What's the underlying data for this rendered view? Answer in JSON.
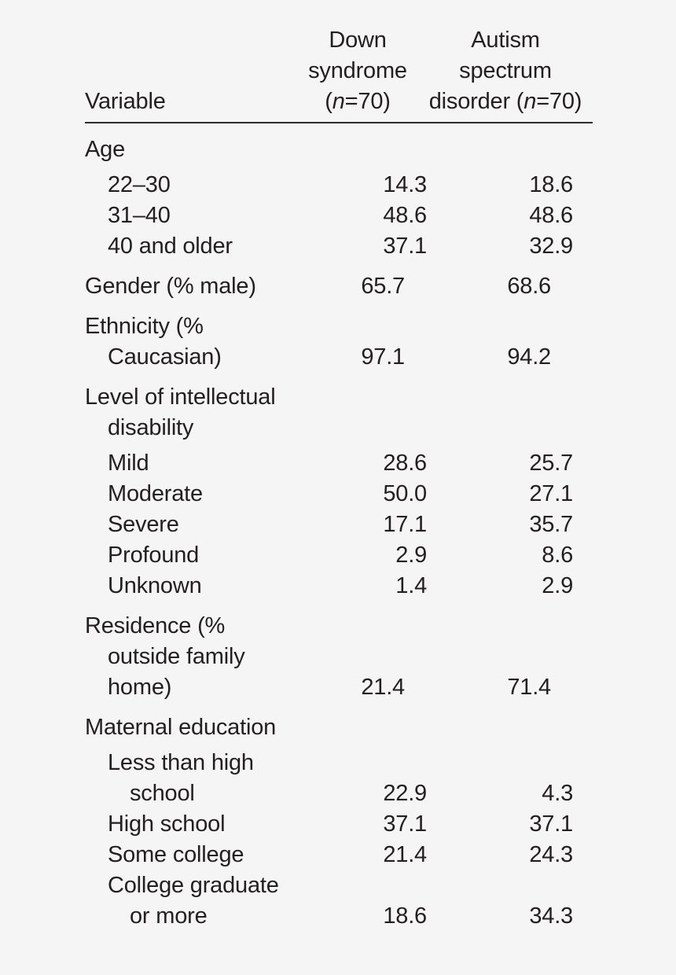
{
  "page": {
    "background_color": "#f5f5f6",
    "text_color": "#231f20",
    "rule_color": "#2e2c2d"
  },
  "table": {
    "header": {
      "variable_label": "Variable",
      "ds": {
        "line1": "Down",
        "line2": "syndrome",
        "n_pre": "(",
        "n": "n",
        "n_post": "=70)"
      },
      "asd": {
        "line1": "Autism",
        "line2": "spectrum",
        "n_pre": "disorder (",
        "n": "n",
        "n_post": "=70)"
      }
    },
    "rows": [
      {
        "label": "Age",
        "level": 0,
        "ds": "",
        "asd": "",
        "gap": "section"
      },
      {
        "label": "22–30",
        "level": 1,
        "ds": "14.3",
        "asd": "18.6",
        "gap": "sub"
      },
      {
        "label": "31–40",
        "level": 1,
        "ds": "48.6",
        "asd": "48.6",
        "gap": "none"
      },
      {
        "label": "40 and older",
        "level": 1,
        "ds": "37.1",
        "asd": "32.9",
        "gap": "none"
      },
      {
        "label": "Gender (% male)",
        "level": 0,
        "ds": "65.7",
        "asad_note": "",
        "asd": "68.6",
        "gap": "section"
      },
      {
        "label": "Ethnicity (%\nCaucasian)",
        "level": 0,
        "ds": "97.1",
        "asd": "94.2",
        "gap": "section"
      },
      {
        "label": "Level of intellectual\ndisability",
        "level": 0,
        "ds": "",
        "asd": "",
        "gap": "section"
      },
      {
        "label": "Mild",
        "level": 1,
        "ds": "28.6",
        "asd": "25.7",
        "gap": "sub"
      },
      {
        "label": "Moderate",
        "level": 1,
        "ds": "50.0",
        "asd": "27.1",
        "gap": "none"
      },
      {
        "label": "Severe",
        "level": 1,
        "ds": "17.1",
        "asd": "35.7",
        "gap": "none"
      },
      {
        "label": "Profound",
        "level": 1,
        "ds": "2.9",
        "asd": "8.6",
        "gap": "none"
      },
      {
        "label": "Unknown",
        "level": 1,
        "ds": "1.4",
        "asd": "2.9",
        "gap": "none"
      },
      {
        "label": "Residence (%\noutside family\nhome)",
        "level": 0,
        "ds": "21.4",
        "asd": "71.4",
        "gap": "section"
      },
      {
        "label": "Maternal education",
        "level": 0,
        "ds": "",
        "asd": "",
        "gap": "section"
      },
      {
        "label": "Less than high\nschool",
        "level": 1,
        "ds": "22.9",
        "asd": "4.3",
        "gap": "sub"
      },
      {
        "label": "High school",
        "level": 1,
        "ds": "37.1",
        "asd": "37.1",
        "gap": "none"
      },
      {
        "label": "Some college",
        "level": 1,
        "ds": "21.4",
        "asd": "24.3",
        "gap": "none"
      },
      {
        "label": "College graduate\nor more",
        "level": 1,
        "ds": "18.6",
        "asd": "34.3",
        "gap": "none"
      }
    ]
  }
}
